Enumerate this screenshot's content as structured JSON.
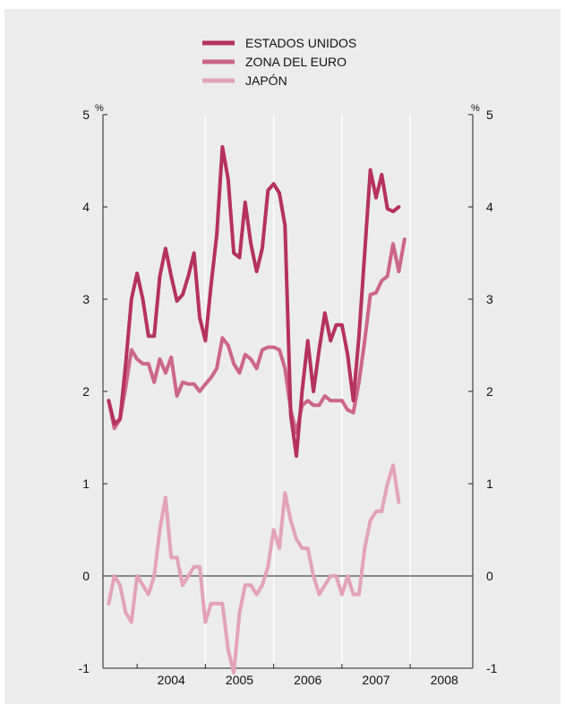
{
  "chart_data": {
    "type": "line",
    "unit_label_left": "%",
    "unit_label_right": "%",
    "ylim": [
      -1,
      5
    ],
    "yticks": [
      "-1",
      "0",
      "1",
      "2",
      "3",
      "4",
      "5"
    ],
    "year_labels": [
      "2004",
      "2005",
      "2006",
      "2007",
      "2008"
    ],
    "grid": "vertical lines at year boundaries, horizontal line at 0",
    "legend_position": "top-center",
    "colors": {
      "estados_unidos": "#b5325e",
      "zona_del_euro": "#cc6688",
      "japon": "#e3a2b8",
      "background": "#ececec"
    },
    "series": [
      {
        "name": "ESTADOS UNIDOS",
        "start": "2003-08",
        "values": [
          1.9,
          1.65,
          1.7,
          2.3,
          3.0,
          3.28,
          3.0,
          2.6,
          2.6,
          3.25,
          3.55,
          3.25,
          2.98,
          3.05,
          3.25,
          3.5,
          2.8,
          2.55,
          3.15,
          3.7,
          4.65,
          4.3,
          3.5,
          3.45,
          4.05,
          3.6,
          3.3,
          3.55,
          4.18,
          4.25,
          4.15,
          3.8,
          1.75,
          1.3,
          2.0,
          2.55,
          2.0,
          2.45,
          2.85,
          2.55,
          2.72,
          2.72,
          2.4,
          1.9,
          2.6,
          3.5,
          4.4,
          4.1,
          4.35,
          3.98,
          3.95,
          4.0
        ]
      },
      {
        "name": "ZONA DEL EURO",
        "start": "2003-08",
        "values": [
          1.9,
          1.6,
          1.7,
          2.05,
          2.45,
          2.35,
          2.3,
          2.3,
          2.1,
          2.35,
          2.2,
          2.37,
          1.95,
          2.1,
          2.08,
          2.08,
          2.0,
          2.08,
          2.15,
          2.25,
          2.58,
          2.5,
          2.3,
          2.2,
          2.4,
          2.35,
          2.25,
          2.45,
          2.48,
          2.48,
          2.45,
          2.25,
          1.8,
          1.55,
          1.85,
          1.9,
          1.85,
          1.85,
          1.95,
          1.9,
          1.9,
          1.9,
          1.8,
          1.77,
          2.1,
          2.55,
          3.05,
          3.07,
          3.2,
          3.25,
          3.6,
          3.3,
          3.65
        ]
      },
      {
        "name": "JAPÓN",
        "start": "2003-08",
        "values": [
          -0.3,
          0.0,
          -0.1,
          -0.4,
          -0.5,
          0.0,
          -0.1,
          -0.2,
          0.0,
          0.5,
          0.85,
          0.2,
          0.2,
          -0.1,
          0.0,
          0.1,
          0.1,
          -0.5,
          -0.3,
          -0.3,
          -0.3,
          -0.8,
          -1.05,
          -0.4,
          -0.1,
          -0.1,
          -0.2,
          -0.1,
          0.1,
          0.5,
          0.3,
          0.9,
          0.6,
          0.4,
          0.3,
          0.3,
          0.0,
          -0.2,
          -0.1,
          0.0,
          0.0,
          -0.2,
          0.0,
          -0.2,
          -0.2,
          0.3,
          0.6,
          0.7,
          0.7,
          1.0,
          1.2,
          0.8
        ]
      }
    ]
  }
}
